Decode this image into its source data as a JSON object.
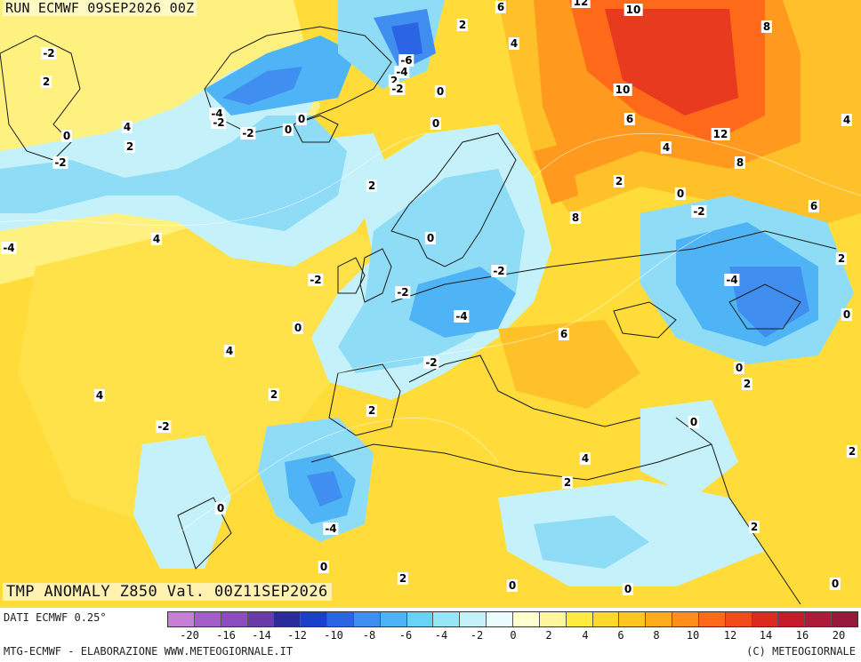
{
  "header": {
    "run_label": "RUN ECMWF 09SEP2026 00Z",
    "product_label": "TMP ANOMALY Z850 Val. 00Z11SEP2026"
  },
  "footer": {
    "data_source": "DATI ECMWF 0.25°",
    "credit_left": "MTG-ECMWF - ELABORAZIONE WWW.METEOGIORNALE.IT",
    "credit_right": "(C) METEOGIORNALE"
  },
  "legend": {
    "tick_labels": [
      "-20",
      "-16",
      "-14",
      "-12",
      "-10",
      "-8",
      "-6",
      "-4",
      "-2",
      "0",
      "2",
      "4",
      "6",
      "8",
      "10",
      "12",
      "14",
      "16",
      "20"
    ],
    "colors": [
      "#c77fd6",
      "#a35fc7",
      "#8a4dbb",
      "#6a3aa6",
      "#2b2b9a",
      "#1a3fc8",
      "#2c64e6",
      "#3f8ef0",
      "#4fb4f5",
      "#68d3f7",
      "#96e6f7",
      "#c5f2fa",
      "#ecfbfd",
      "#ffffd0",
      "#fff5a0",
      "#ffeb3b",
      "#ffd92a",
      "#ffc61e",
      "#ffab1a",
      "#ff8f1a",
      "#ff6a1a",
      "#f24a1a",
      "#de2a1e",
      "#c81a2a",
      "#b01a3a",
      "#951a3a"
    ]
  },
  "map": {
    "palette": {
      "very_cold": "#2c64e6",
      "cold": "#3f8ef0",
      "cool": "#4fb4f5",
      "cool_light": "#8fdcf6",
      "pale": "#d2f3fb",
      "neutral": "#ffffd0",
      "warm_light": "#fff180",
      "warm": "#ffdc3a",
      "warmer": "#ffc12a",
      "orange": "#ff9a1e",
      "hot": "#ff6a1a",
      "hotter": "#e83a1e",
      "land_line": "#1a1a1a"
    },
    "isotherm_labels": [
      {
        "text": "6"
      },
      {
        "text": "12"
      },
      {
        "text": "10"
      },
      {
        "text": "8"
      },
      {
        "text": "2"
      },
      {
        "text": "4"
      },
      {
        "text": "2"
      },
      {
        "text": "-2"
      },
      {
        "text": "-6"
      },
      {
        "text": "-4"
      },
      {
        "text": "2"
      },
      {
        "text": "-2"
      },
      {
        "text": "0"
      },
      {
        "text": "10"
      },
      {
        "text": "-4"
      },
      {
        "text": "-2"
      },
      {
        "text": "0"
      },
      {
        "text": "0"
      },
      {
        "text": "0"
      },
      {
        "text": "6"
      },
      {
        "text": "4"
      },
      {
        "text": "4"
      },
      {
        "text": "2"
      },
      {
        "text": "-2"
      },
      {
        "text": "12"
      },
      {
        "text": "0"
      },
      {
        "text": "8"
      },
      {
        "text": "4"
      },
      {
        "text": "-2"
      },
      {
        "text": "2"
      },
      {
        "text": "2"
      },
      {
        "text": "0"
      },
      {
        "text": "-2"
      },
      {
        "text": "6"
      },
      {
        "text": "-4"
      },
      {
        "text": "4"
      },
      {
        "text": "8"
      },
      {
        "text": "0"
      },
      {
        "text": "-2"
      },
      {
        "text": "-4"
      },
      {
        "text": "-2"
      },
      {
        "text": "-2"
      },
      {
        "text": "0"
      },
      {
        "text": "-4"
      },
      {
        "text": "6"
      },
      {
        "text": "4"
      },
      {
        "text": "0"
      },
      {
        "text": "-2"
      },
      {
        "text": "0"
      },
      {
        "text": "2"
      },
      {
        "text": "4"
      },
      {
        "text": "2"
      },
      {
        "text": "2"
      },
      {
        "text": "-2"
      },
      {
        "text": "0"
      },
      {
        "text": "4"
      },
      {
        "text": "2"
      },
      {
        "text": "2"
      },
      {
        "text": "0"
      },
      {
        "text": "-4"
      },
      {
        "text": "2"
      },
      {
        "text": "0"
      },
      {
        "text": "2"
      },
      {
        "text": "0"
      },
      {
        "text": "0"
      },
      {
        "text": "0"
      },
      {
        "text": "2"
      }
    ]
  }
}
